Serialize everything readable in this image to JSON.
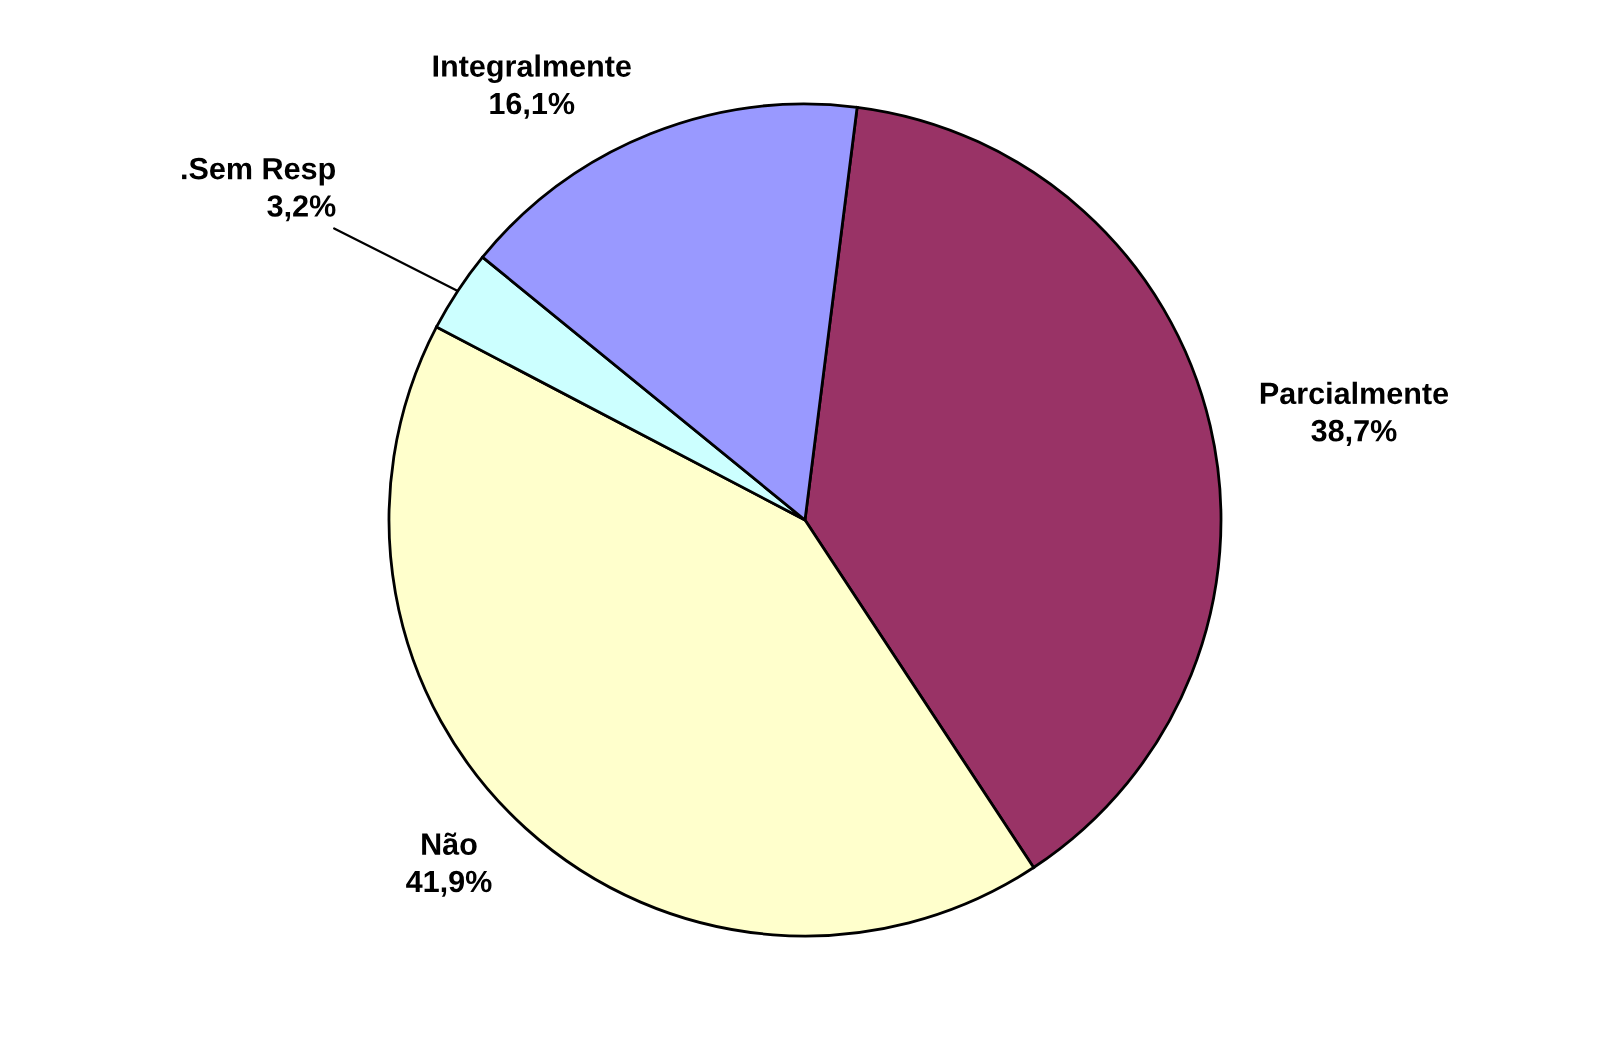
{
  "chart_data": {
    "type": "pie",
    "categories": [
      "Parcialmente",
      "Não",
      ".Sem Resp",
      "Integralmente"
    ],
    "values": [
      38.7,
      41.9,
      3.2,
      16.1
    ],
    "value_labels": [
      "38,7%",
      "41,9%",
      "3,2%",
      "16,1%"
    ],
    "colors": [
      "#993366",
      "#ffffcc",
      "#ccffff",
      "#9999ff"
    ]
  }
}
